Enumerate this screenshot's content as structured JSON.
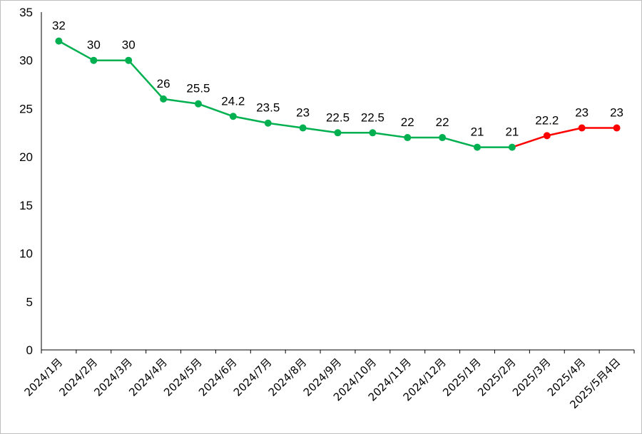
{
  "chart_data": {
    "type": "line",
    "title": "",
    "xlabel": "",
    "ylabel": "",
    "categories": [
      "2024/1月",
      "2024/2月",
      "2024/3月",
      "2024/4月",
      "2024/5月",
      "2024/6月",
      "2024/7月",
      "2024/8月",
      "2024/9月",
      "2024/10月",
      "2024/11月",
      "2024/12月",
      "2025/1月",
      "2025/2月",
      "2025/3月",
      "2025/4月",
      "2025/5月4日"
    ],
    "series": [
      {
        "values": [
          32,
          30,
          30,
          26,
          25.5,
          24.2,
          23.5,
          23,
          22.5,
          22.5,
          22,
          22,
          21,
          21,
          22.2,
          23,
          23
        ],
        "data_labels": [
          "32",
          "30",
          "30",
          "26",
          "25.5",
          "24.2",
          "23.5",
          "23",
          "22.5",
          "22.5",
          "22",
          "22",
          "21",
          "21",
          "22.2",
          "23",
          "23"
        ],
        "color_primary": "#00b050",
        "color_highlight": "#ff0000",
        "highlight_from_index": 13
      }
    ],
    "ylim": [
      0,
      35
    ],
    "yticks": [
      0,
      5,
      10,
      15,
      20,
      25,
      30,
      35
    ],
    "ytick_labels": [
      "0",
      "5",
      "10",
      "15",
      "20",
      "25",
      "30",
      "35"
    ],
    "grid": false,
    "legend": "none"
  }
}
